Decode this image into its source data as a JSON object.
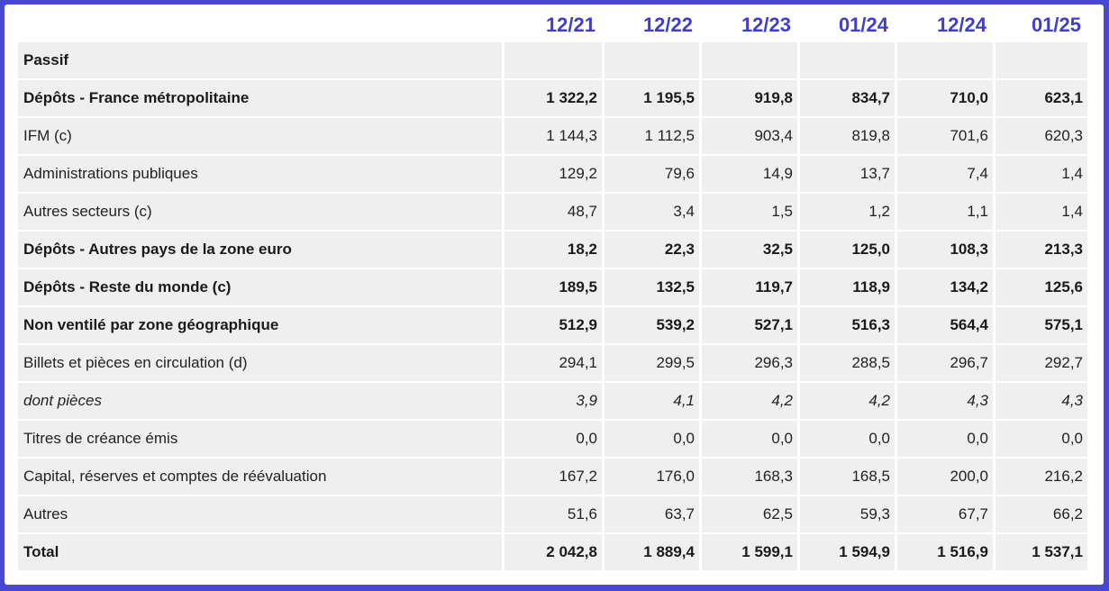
{
  "chart_data": {
    "type": "table",
    "columns": [
      "12/21",
      "12/22",
      "12/23",
      "01/24",
      "12/24",
      "01/25"
    ],
    "rows": [
      {
        "label": "Passif",
        "style": "bold",
        "values": [
          "",
          "",
          "",
          "",
          "",
          ""
        ]
      },
      {
        "label": "Dépôts - France métropolitaine",
        "style": "bold",
        "values": [
          "1 322,2",
          "1 195,5",
          "919,8",
          "834,7",
          "710,0",
          "623,1"
        ]
      },
      {
        "label": "IFM (c)",
        "style": "normal",
        "values": [
          "1 144,3",
          "1 112,5",
          "903,4",
          "819,8",
          "701,6",
          "620,3"
        ]
      },
      {
        "label": "Administrations publiques",
        "style": "normal",
        "values": [
          "129,2",
          "79,6",
          "14,9",
          "13,7",
          "7,4",
          "1,4"
        ]
      },
      {
        "label": "Autres secteurs (c)",
        "style": "normal",
        "values": [
          "48,7",
          "3,4",
          "1,5",
          "1,2",
          "1,1",
          "1,4"
        ]
      },
      {
        "label": "Dépôts - Autres pays de la zone euro",
        "style": "bold",
        "values": [
          "18,2",
          "22,3",
          "32,5",
          "125,0",
          "108,3",
          "213,3"
        ]
      },
      {
        "label": "Dépôts - Reste du monde (c)",
        "style": "bold",
        "values": [
          "189,5",
          "132,5",
          "119,7",
          "118,9",
          "134,2",
          "125,6"
        ]
      },
      {
        "label": "Non ventilé par zone géographique",
        "style": "bold",
        "values": [
          "512,9",
          "539,2",
          "527,1",
          "516,3",
          "564,4",
          "575,1"
        ]
      },
      {
        "label": "Billets et pièces en circulation (d)",
        "style": "normal",
        "values": [
          "294,1",
          "299,5",
          "296,3",
          "288,5",
          "296,7",
          "292,7"
        ]
      },
      {
        "label": "dont pièces",
        "style": "italic",
        "values": [
          "3,9",
          "4,1",
          "4,2",
          "4,2",
          "4,3",
          "4,3"
        ]
      },
      {
        "label": "Titres de créance émis",
        "style": "normal",
        "values": [
          "0,0",
          "0,0",
          "0,0",
          "0,0",
          "0,0",
          "0,0"
        ]
      },
      {
        "label": "Capital, réserves et comptes de réévaluation",
        "style": "normal",
        "values": [
          "167,2",
          "176,0",
          "168,3",
          "168,5",
          "200,0",
          "216,2"
        ]
      },
      {
        "label": "Autres",
        "style": "normal",
        "values": [
          "51,6",
          "63,7",
          "62,5",
          "59,3",
          "67,7",
          "66,2"
        ]
      },
      {
        "label": "Total",
        "style": "bold",
        "values": [
          "2 042,8",
          "1 889,4",
          "1 599,1",
          "1 594,9",
          "1 516,9",
          "1 537,1"
        ]
      }
    ]
  },
  "colors": {
    "border": "#4747d1",
    "header_text": "#3f3fcc",
    "cell_background": "#efefef"
  }
}
